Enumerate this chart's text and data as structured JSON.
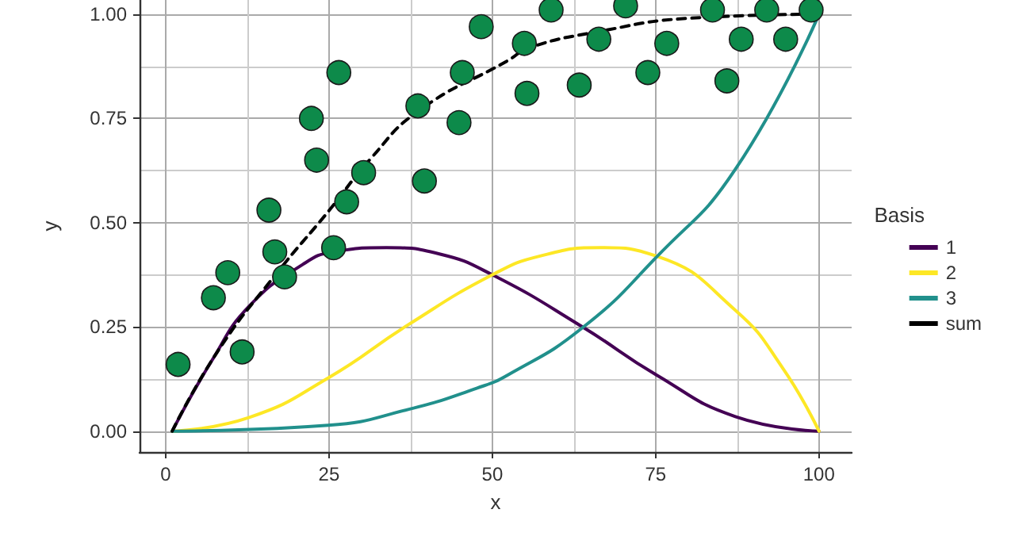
{
  "chart_data": {
    "type": "line",
    "xlabel": "x",
    "ylabel": "y",
    "legend_title": "Basis",
    "legend": "right",
    "grid": true,
    "xlim": [
      -4,
      105
    ],
    "ylim": [
      -0.05,
      1.034
    ],
    "xticks": [
      0,
      25,
      50,
      75,
      100
    ],
    "yticks": [
      {
        "value": 0,
        "label": "0.00"
      },
      {
        "value": 0.25,
        "label": "0.25"
      },
      {
        "value": 0.5,
        "label": "0.50"
      },
      {
        "value": 0.75,
        "label": "0.75"
      },
      {
        "value": 1,
        "label": "1.00"
      }
    ],
    "series": [
      {
        "type": "scatter",
        "marker": "circle",
        "color": "#0d8a4a",
        "x": [
          1.9,
          7.3,
          9.5,
          11.7,
          15.8,
          16.7,
          18.2,
          22.3,
          23.1,
          25.7,
          26.5,
          27.7,
          30.3,
          38.6,
          39.6,
          44.9,
          45.4,
          48.3,
          54.9,
          55.3,
          59.0,
          63.3,
          66.3,
          70.4,
          73.8,
          76.7,
          83.7,
          85.9,
          88.1,
          92.0,
          94.9,
          98.8
        ],
        "values": [
          0.16,
          0.32,
          0.38,
          0.19,
          0.53,
          0.43,
          0.37,
          0.75,
          0.65,
          0.44,
          0.86,
          0.55,
          0.62,
          0.78,
          0.6,
          0.74,
          0.86,
          0.97,
          0.93,
          0.81,
          1.01,
          0.83,
          0.94,
          1.02,
          0.86,
          0.93,
          1.01,
          0.84,
          0.94,
          1.01,
          0.94,
          1.01
        ]
      },
      {
        "name": "1",
        "color": "#440154",
        "line_style": "solid",
        "x": [
          1,
          7.1,
          12.8,
          21,
          25.7,
          33.8,
          41.9,
          50,
          63.8,
          75.1,
          87.2,
          100
        ],
        "values": [
          0,
          0.17,
          0.3,
          0.4,
          0.43,
          0.44,
          0.425,
          0.375,
          0.25,
          0.135,
          0.035,
          0
        ]
      },
      {
        "name": "2",
        "color": "#fde725",
        "line_style": "solid",
        "x": [
          1,
          12.8,
          24.9,
          37.1,
          50,
          57.3,
          66.6,
          75.1,
          87.2,
          94.5,
          100
        ],
        "values": [
          0,
          0.033,
          0.128,
          0.255,
          0.375,
          0.42,
          0.44,
          0.42,
          0.29,
          0.15,
          0
        ]
      },
      {
        "name": "3",
        "color": "#21908c",
        "line_style": "solid",
        "x": [
          1,
          24.9,
          37.1,
          47.6,
          52.4,
          63.8,
          75.1,
          87.2,
          100
        ],
        "values": [
          0,
          0.014,
          0.052,
          0.103,
          0.135,
          0.248,
          0.417,
          0.628,
          1.0
        ]
      },
      {
        "name": "sum",
        "color": "#000000",
        "line_style": "dashed",
        "x": [
          1,
          7.9,
          16.8,
          24.9,
          31.4,
          38.7,
          52.4,
          55.7,
          66.2,
          79.9,
          100
        ],
        "values": [
          0,
          0.19,
          0.375,
          0.527,
          0.654,
          0.768,
          0.889,
          0.92,
          0.958,
          0.99,
          1.0
        ]
      }
    ]
  }
}
